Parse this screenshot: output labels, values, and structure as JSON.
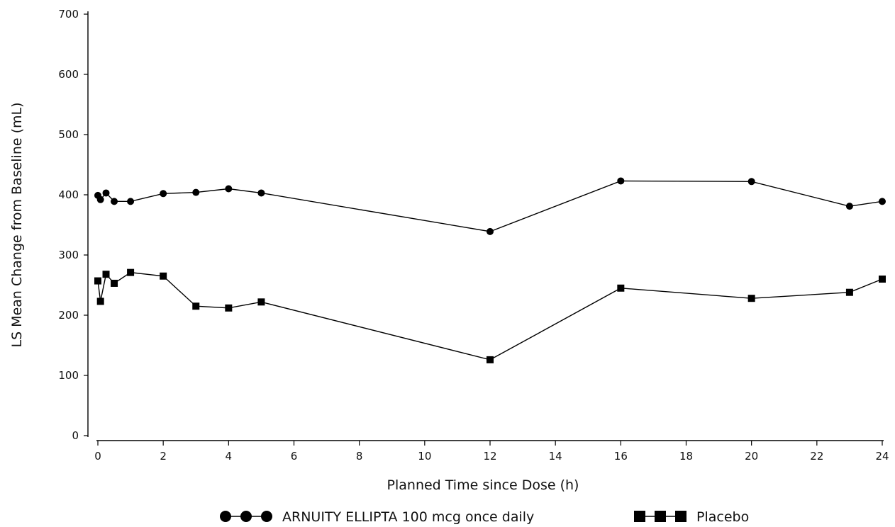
{
  "chart_data": {
    "type": "line",
    "title": "",
    "xlabel": "Planned Time since Dose (h)",
    "ylabel": "LS Mean Change from Baseline (mL)",
    "xlim": [
      0,
      24
    ],
    "ylim": [
      0,
      700
    ],
    "xticks": [
      0,
      2,
      4,
      6,
      8,
      10,
      12,
      14,
      16,
      18,
      20,
      22,
      24
    ],
    "yticks": [
      0,
      100,
      200,
      300,
      400,
      500,
      600,
      700
    ],
    "grid": false,
    "legend_position": "bottom",
    "series": [
      {
        "name": "ARNUITY ELLIPTA 100 mcg once daily",
        "marker": "circle",
        "color": "#000000",
        "x": [
          0,
          0.08,
          0.25,
          0.5,
          1,
          2,
          3,
          4,
          5,
          12,
          16,
          20,
          23,
          24
        ],
        "y": [
          399,
          392,
          403,
          389,
          389,
          402,
          404,
          410,
          403,
          339,
          423,
          422,
          381,
          389
        ]
      },
      {
        "name": "Placebo",
        "marker": "square",
        "color": "#000000",
        "x": [
          0,
          0.08,
          0.25,
          0.5,
          1,
          2,
          3,
          4,
          5,
          12,
          16,
          20,
          23,
          24
        ],
        "y": [
          257,
          223,
          268,
          253,
          271,
          265,
          215,
          212,
          222,
          126,
          245,
          228,
          238,
          260
        ]
      }
    ]
  }
}
